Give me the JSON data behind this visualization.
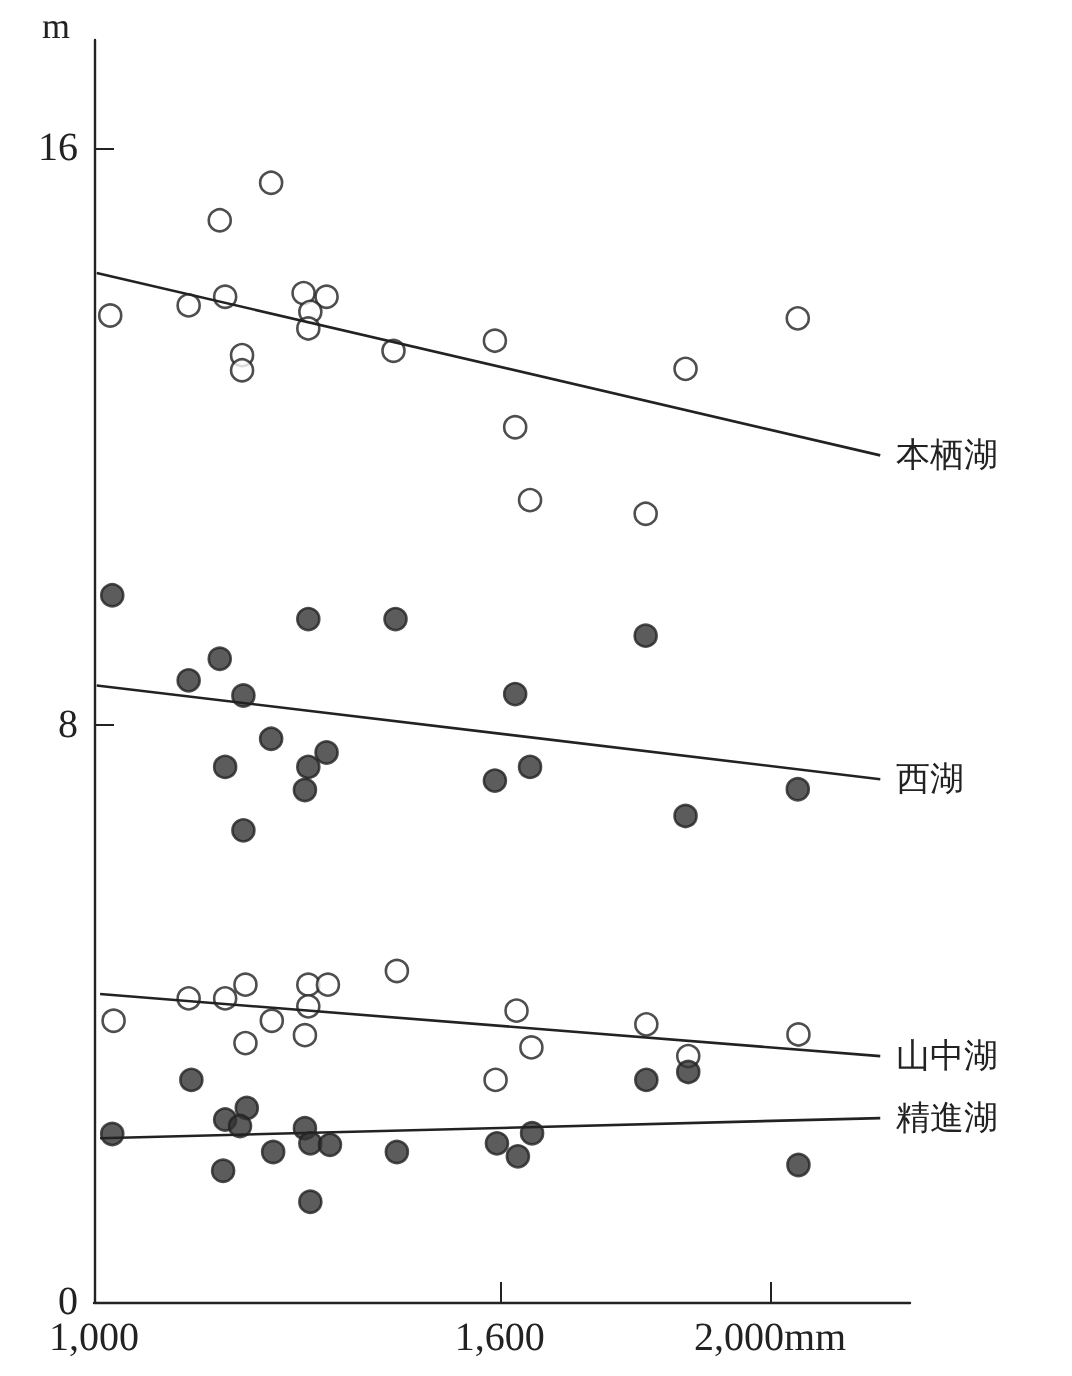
{
  "chart_data": {
    "type": "scatter",
    "ylabel": "m",
    "xlim": [
      1000,
      2207
    ],
    "ylim": [
      0,
      17.5
    ],
    "xticks": [
      {
        "value": 1000,
        "label": "1,000"
      },
      {
        "value": 1600,
        "label": "1,600"
      },
      {
        "value": 2000,
        "label": "2,000mm"
      }
    ],
    "yticks": [
      0,
      8,
      16
    ],
    "grid": false,
    "legend": false,
    "series": [
      {
        "marker": "circle",
        "color": "#ffffff",
        "x": [
          1024,
          1140,
          1186,
          1194,
          1262,
          1219,
          1219,
          1310,
          1344,
          1320,
          1317,
          1443,
          1593,
          2041,
          1875,
          1623,
          1645,
          1816
        ],
        "values": [
          13.68,
          13.82,
          15.0,
          13.94,
          15.52,
          13.13,
          12.92,
          13.99,
          13.94,
          13.73,
          13.5,
          13.19,
          13.33,
          13.64,
          12.94,
          12.13,
          11.12,
          10.93
        ]
      },
      {
        "type": "line",
        "marker": "none",
        "name": "本栖湖",
        "color": "#222222",
        "x": [
          1004,
          2163
        ],
        "values": [
          14.27,
          11.74
        ]
      },
      {
        "marker": "circle",
        "color": "#333333",
        "x": [
          1027,
          1317,
          1446,
          1816,
          1186,
          1140,
          1221,
          1623,
          1262,
          1344,
          1317,
          1194,
          1593,
          1645,
          1312,
          2041,
          1875,
          1221
        ],
        "values": [
          9.8,
          9.47,
          9.47,
          9.24,
          8.92,
          8.62,
          8.41,
          8.43,
          7.81,
          7.62,
          7.42,
          7.42,
          7.23,
          7.42,
          7.1,
          7.11,
          6.74,
          6.54
        ]
      },
      {
        "type": "line",
        "marker": "none",
        "name": "西湖",
        "color": "#222222",
        "x": [
          1004,
          2163
        ],
        "values": [
          8.55,
          7.25
        ]
      },
      {
        "marker": "circle",
        "color": "#ffffff",
        "x": [
          1029,
          1140,
          1194,
          1224,
          1317,
          1346,
          1448,
          1263,
          1317,
          1312,
          1224,
          1625,
          1647,
          1594,
          1817,
          1879,
          2042
        ],
        "values": [
          3.9,
          4.21,
          4.21,
          4.4,
          4.4,
          4.4,
          4.59,
          3.9,
          4.1,
          3.7,
          3.59,
          4.04,
          3.53,
          3.08,
          3.85,
          3.41,
          3.71
        ]
      },
      {
        "type": "line",
        "marker": "none",
        "name": "山中湖",
        "color": "#222222",
        "x": [
          1009,
          2163
        ],
        "values": [
          4.27,
          3.41
        ]
      },
      {
        "marker": "circle",
        "color": "#333333",
        "x": [
          1144,
          1817,
          1879,
          1027,
          1194,
          1226,
          1216,
          1312,
          1320,
          1349,
          1265,
          1448,
          1191,
          1596,
          1648,
          1627,
          2042,
          1320
        ],
        "values": [
          3.08,
          3.08,
          3.19,
          2.33,
          2.53,
          2.69,
          2.44,
          2.41,
          2.2,
          2.18,
          2.08,
          2.08,
          1.82,
          2.2,
          2.34,
          2.02,
          1.9,
          1.39
        ]
      },
      {
        "type": "line",
        "marker": "none",
        "name": "精進湖",
        "color": "#222222",
        "x": [
          1009,
          2163
        ],
        "values": [
          2.27,
          2.55
        ]
      }
    ]
  }
}
